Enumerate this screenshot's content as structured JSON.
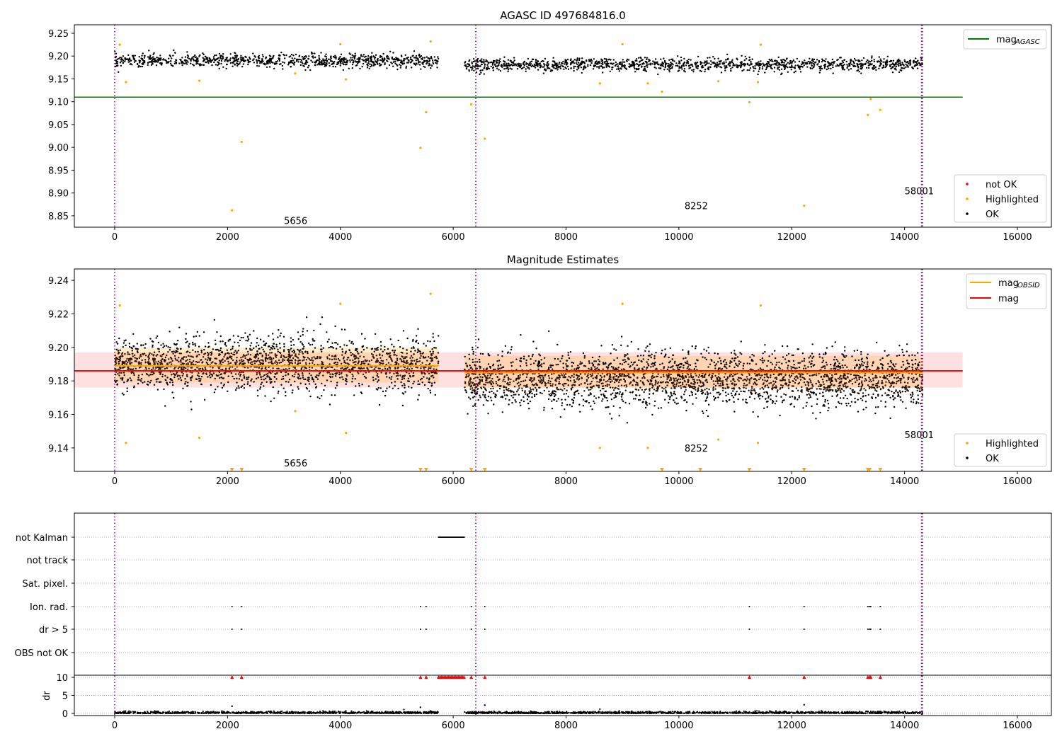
{
  "chart_data": [
    {
      "type": "scatter",
      "title": "AGASC ID 497684816.0",
      "xlim": [
        -715,
        16600
      ],
      "ylim": [
        8.825,
        9.2686
      ],
      "xticks": [
        0,
        2000,
        4000,
        6000,
        8000,
        10000,
        12000,
        14000,
        16000
      ],
      "yticks": [
        8.85,
        8.9,
        8.95,
        9.0,
        9.05,
        9.1,
        9.15,
        9.2,
        9.25
      ],
      "ytick_labels": [
        "8.85",
        "8.90",
        "8.95",
        "9.00",
        "9.05",
        "9.10",
        "9.15",
        "9.20",
        "9.25"
      ],
      "mag_agasc": 9.11,
      "mag_agasc_xmax": 15030,
      "legend_top": {
        "label": "mag",
        "sub": "AGASC",
        "color": "#008000"
      },
      "legend_bottom": [
        {
          "label": "not OK",
          "color": "#ff0000"
        },
        {
          "label": "Highlighted",
          "color": "#ffa500"
        },
        {
          "label": "OK",
          "color": "#000000"
        }
      ],
      "segments": [
        {
          "x0": 0,
          "x1": 5740,
          "mean": 9.19,
          "sd": 0.008
        },
        {
          "x0": 6200,
          "x1": 14320,
          "mean": 9.181,
          "sd": 0.008
        }
      ],
      "highlighted": [
        [
          200,
          9.143
        ],
        [
          2080,
          8.862
        ],
        [
          2250,
          9.012
        ],
        [
          5420,
          8.999
        ],
        [
          5520,
          9.077
        ],
        [
          6320,
          9.094
        ],
        [
          6560,
          9.019
        ],
        [
          11250,
          9.099
        ],
        [
          12220,
          8.872
        ],
        [
          13350,
          9.071
        ],
        [
          13400,
          9.106
        ],
        [
          13570,
          9.082
        ],
        [
          1500,
          9.146
        ],
        [
          4100,
          9.149
        ],
        [
          9700,
          9.122
        ],
        [
          9450,
          9.14
        ],
        [
          11400,
          9.143
        ],
        [
          10700,
          9.145
        ],
        [
          3200,
          9.162
        ],
        [
          8600,
          9.14
        ],
        [
          5600,
          9.232
        ],
        [
          90,
          9.225
        ],
        [
          9000,
          9.226
        ],
        [
          11450,
          9.225
        ],
        [
          4000,
          9.226
        ]
      ],
      "events": [
        {
          "x": 0,
          "label": ""
        },
        {
          "x": 6400,
          "label": ""
        },
        {
          "x": 14300,
          "label": ""
        },
        {
          "x": 14320,
          "label": ""
        }
      ],
      "obsid_labels": [
        {
          "x": 3000,
          "y": 8.84,
          "text": "5656"
        },
        {
          "x": 10100,
          "y": 8.872,
          "text": "8252"
        },
        {
          "x": 14000,
          "y": 8.905,
          "text": "58001"
        }
      ]
    },
    {
      "type": "scatter",
      "title": "Magnitude Estimates",
      "xlim": [
        -715,
        16600
      ],
      "ylim": [
        9.126,
        9.2468
      ],
      "yticks": [
        9.14,
        9.16,
        9.18,
        9.2,
        9.22,
        9.24
      ],
      "ytick_labels": [
        "9.14",
        "9.16",
        "9.18",
        "9.20",
        "9.22",
        "9.24"
      ],
      "mag": 9.186,
      "mag_band": [
        9.176,
        9.197
      ],
      "mag_obsid": [
        {
          "x0": 0,
          "x1": 5740,
          "value": 9.189,
          "band": [
            9.179,
            9.2
          ]
        },
        {
          "x0": 6200,
          "x1": 14320,
          "value": 9.185,
          "band": [
            9.176,
            9.195
          ]
        }
      ],
      "legend_top": [
        {
          "label": "mag",
          "sub": "OBSID",
          "color": "#ffa500"
        },
        {
          "label": "mag",
          "sub": "",
          "color": "#ff0000"
        }
      ],
      "legend_bottom": [
        {
          "label": "Highlighted",
          "color": "#ffa500"
        },
        {
          "label": "OK",
          "color": "#000000"
        }
      ],
      "below_range_x": [
        2080,
        2250,
        5420,
        5520,
        6320,
        6560,
        9700,
        10380,
        11250,
        12220,
        13350,
        13380,
        13570
      ],
      "obsid_labels": [
        {
          "x": 3000,
          "y": 9.131,
          "text": "5656"
        },
        {
          "x": 10100,
          "y": 9.14,
          "text": "8252"
        },
        {
          "x": 14000,
          "y": 9.148,
          "text": "58001"
        }
      ]
    },
    {
      "type": "scatter",
      "title": "",
      "categories": [
        "not Kalman",
        "not track",
        "Sat. pixel.",
        "Ion. rad.",
        "dr > 5",
        "OBS not OK"
      ],
      "not_kalman_range": [
        5740,
        6200
      ],
      "flag_x": [
        2080,
        2250,
        5420,
        5520,
        6320,
        6560,
        11250,
        12220,
        13350,
        13380,
        13400,
        13570
      ],
      "dr_ylabel": "dr",
      "dr_yticks": [
        0,
        5,
        10
      ],
      "dr_ytick_labels": [
        "0",
        "5",
        "10"
      ],
      "dr_clip": 10,
      "dr_spikes": [
        [
          2080,
          2.0
        ],
        [
          5420,
          1.7
        ],
        [
          6560,
          2.3
        ],
        [
          12220,
          2.4
        ]
      ]
    }
  ]
}
